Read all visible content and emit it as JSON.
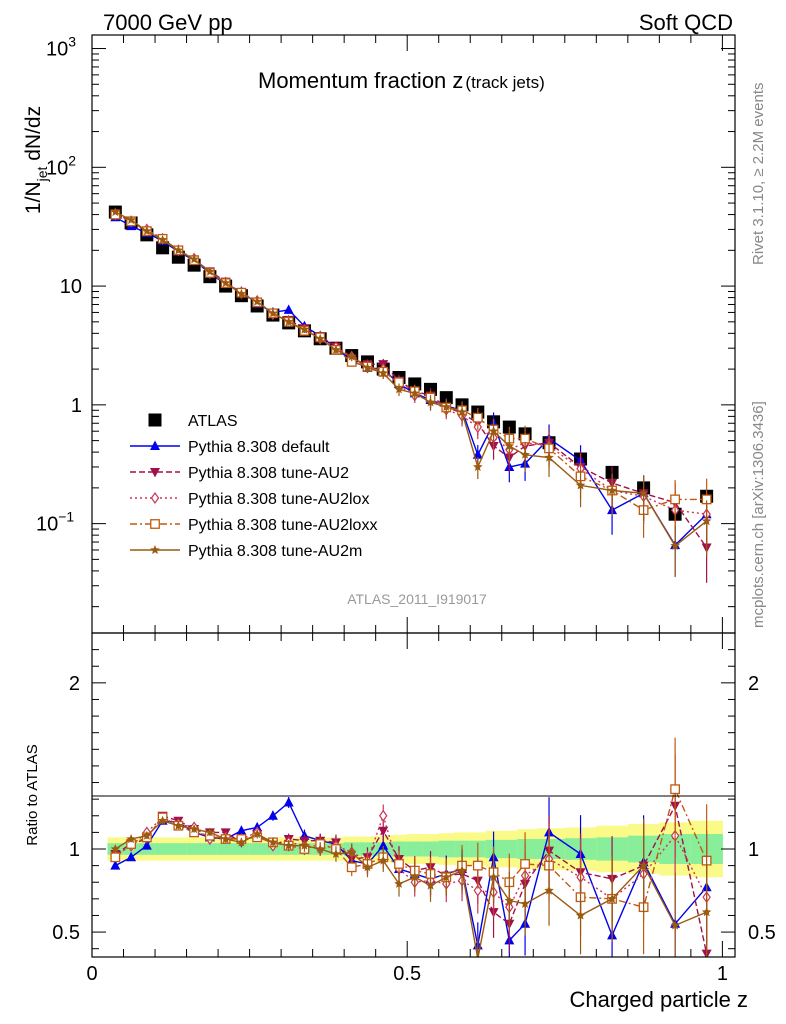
{
  "header": {
    "left": "7000 GeV pp",
    "right": "Soft QCD"
  },
  "side": {
    "rivet": "Rivet 3.1.10, ≥ 2.2M events",
    "mcplots": "mcplots.cern.ch [arXiv:1306.3436]"
  },
  "analysis_id": "ATLAS_2011_I919017",
  "chart_data": [
    {
      "type": "scatter",
      "panel": "main",
      "title": "Momentum fraction z",
      "title_subscript": "(track jets)",
      "ylabel": "1/N_jet dN/dz",
      "ylabel_parts": {
        "base": "1/N",
        "sub": "jet",
        "tail": " dN/dz"
      },
      "yscale": "log",
      "ylim": [
        0.012,
        1300
      ],
      "xlim": [
        0,
        1.02
      ],
      "y_ticks": [
        {
          "value": 1000,
          "base": "10",
          "exp": "3"
        },
        {
          "value": 100,
          "base": "10",
          "exp": "2"
        },
        {
          "value": 10,
          "base": "10",
          "exp": ""
        },
        {
          "value": 1,
          "base": "1",
          "exp": ""
        },
        {
          "value": 0.1,
          "base": "10",
          "exp": "−1"
        }
      ],
      "legend_position": "bottom-left",
      "x": [
        0.037,
        0.062,
        0.087,
        0.112,
        0.137,
        0.162,
        0.187,
        0.212,
        0.237,
        0.262,
        0.287,
        0.312,
        0.337,
        0.362,
        0.387,
        0.412,
        0.437,
        0.462,
        0.487,
        0.512,
        0.537,
        0.562,
        0.587,
        0.612,
        0.637,
        0.662,
        0.687,
        0.725,
        0.775,
        0.825,
        0.875,
        0.925,
        0.975
      ],
      "series": [
        {
          "name": "ATLAS",
          "color": "#000000",
          "marker": "square-filled",
          "line": "none",
          "values": [
            42,
            34,
            27,
            21,
            17.5,
            15,
            12,
            10,
            8.3,
            6.8,
            5.7,
            4.9,
            4.2,
            3.6,
            3.0,
            2.6,
            2.3,
            2.0,
            1.7,
            1.5,
            1.35,
            1.15,
            1.0,
            0.87,
            0.72,
            0.65,
            0.57,
            0.48,
            0.35,
            0.27,
            0.2,
            0.12,
            0.17
          ]
        },
        {
          "name": "Pythia 8.308 default",
          "color": "#0000ee",
          "marker": "triangle-up-filled",
          "line": "solid",
          "values": [
            38,
            32,
            28,
            24,
            19.5,
            16.5,
            12.8,
            10.4,
            9.0,
            7.1,
            6.0,
            6.3,
            4.6,
            3.8,
            3.0,
            2.35,
            2.05,
            2.0,
            1.5,
            1.25,
            1.1,
            0.98,
            0.9,
            0.38,
            0.7,
            0.3,
            0.32,
            0.52,
            0.34,
            0.13,
            0.18,
            0.066,
            0.12
          ]
        },
        {
          "name": "Pythia 8.308 tune-AU2",
          "color": "#a0104a",
          "marker": "triangle-down-filled",
          "line": "dashed",
          "values": [
            41,
            35,
            29,
            25,
            20,
            16.8,
            13.3,
            10.9,
            8.5,
            7.4,
            5.8,
            5.2,
            4.4,
            3.8,
            3.1,
            2.45,
            2.2,
            2.2,
            1.6,
            1.3,
            1.2,
            0.96,
            0.85,
            0.7,
            0.45,
            0.36,
            0.45,
            0.48,
            0.3,
            0.22,
            0.18,
            0.15,
            0.063
          ]
        },
        {
          "name": "Pythia 8.308 tune-AU2lox",
          "color": "#cc3355",
          "marker": "diamond-open",
          "line": "dotted",
          "values": [
            40,
            35,
            30,
            25,
            20,
            17,
            12.8,
            10.7,
            8.8,
            7.5,
            5.8,
            5.1,
            4.3,
            3.6,
            3.05,
            2.55,
            2.1,
            2.0,
            1.45,
            1.2,
            1.1,
            0.91,
            0.81,
            0.65,
            0.53,
            0.42,
            0.48,
            0.45,
            0.29,
            0.19,
            0.17,
            0.13,
            0.12
          ]
        },
        {
          "name": "Pythia 8.308 tune-AU2loxx",
          "color": "#c05a10",
          "marker": "square-open",
          "line": "dashdot",
          "values": [
            40,
            35,
            29,
            25,
            20,
            16.5,
            12.9,
            10.6,
            8.8,
            7.3,
            5.9,
            5.0,
            4.2,
            3.7,
            2.9,
            2.3,
            2.1,
            1.9,
            1.55,
            1.3,
            1.15,
            0.95,
            0.9,
            0.78,
            0.62,
            0.52,
            0.52,
            0.43,
            0.25,
            0.19,
            0.13,
            0.16,
            0.16
          ]
        },
        {
          "name": "Pythia 8.308 tune-AU2m",
          "color": "#9a5a10",
          "marker": "star-filled",
          "line": "solid",
          "values": [
            42,
            36,
            29,
            24.5,
            20,
            16.8,
            13.2,
            10.6,
            8.6,
            7.4,
            5.9,
            5.0,
            4.3,
            3.6,
            2.9,
            2.55,
            2.05,
            1.85,
            1.35,
            1.25,
            1.05,
            0.96,
            0.87,
            0.3,
            0.6,
            0.45,
            0.38,
            0.36,
            0.21,
            0.19,
            0.18,
            0.065,
            0.105
          ]
        }
      ]
    },
    {
      "type": "scatter",
      "panel": "ratio",
      "ylabel": "Ratio to ATLAS",
      "xlabel": "Charged particle z",
      "ylim": [
        0.35,
        2.3
      ],
      "xlim": [
        0,
        1.02
      ],
      "y_ticks": [
        {
          "value": 0.5,
          "label": "0.5"
        },
        {
          "value": 1,
          "label": "1"
        },
        {
          "value": 2,
          "label": "2"
        }
      ],
      "x_ticks": [
        {
          "value": 0,
          "label": "0"
        },
        {
          "value": 0.5,
          "label": "0.5"
        },
        {
          "value": 1,
          "label": "1"
        }
      ],
      "band_1sigma_color": "#88ee99",
      "band_2sigma_color": "#fafa88",
      "x": [
        0.037,
        0.062,
        0.087,
        0.112,
        0.137,
        0.162,
        0.187,
        0.212,
        0.237,
        0.262,
        0.287,
        0.312,
        0.337,
        0.362,
        0.387,
        0.412,
        0.437,
        0.462,
        0.487,
        0.512,
        0.537,
        0.562,
        0.587,
        0.612,
        0.637,
        0.662,
        0.687,
        0.725,
        0.775,
        0.825,
        0.875,
        0.925,
        0.975
      ],
      "band_1sigma": [
        0.035,
        0.035,
        0.035,
        0.035,
        0.035,
        0.035,
        0.035,
        0.035,
        0.035,
        0.035,
        0.035,
        0.035,
        0.035,
        0.035,
        0.035,
        0.04,
        0.04,
        0.04,
        0.045,
        0.045,
        0.045,
        0.05,
        0.05,
        0.05,
        0.055,
        0.055,
        0.06,
        0.06,
        0.065,
        0.07,
        0.08,
        0.09,
        0.09
      ],
      "band_2sigma": [
        0.07,
        0.07,
        0.07,
        0.07,
        0.07,
        0.07,
        0.07,
        0.07,
        0.07,
        0.07,
        0.07,
        0.07,
        0.07,
        0.07,
        0.07,
        0.075,
        0.075,
        0.08,
        0.085,
        0.09,
        0.09,
        0.095,
        0.1,
        0.1,
        0.11,
        0.11,
        0.12,
        0.125,
        0.13,
        0.14,
        0.15,
        0.16,
        0.17
      ],
      "series": [
        {
          "name": "Pythia 8.308 default",
          "color": "#0000ee",
          "marker": "triangle-up-filled",
          "line": "solid",
          "values": [
            0.9,
            0.95,
            1.02,
            1.17,
            1.16,
            1.1,
            1.07,
            1.06,
            1.11,
            1.13,
            1.2,
            1.28,
            1.08,
            1.05,
            1.03,
            0.93,
            0.91,
            1.02,
            0.88,
            0.85,
            0.82,
            0.85,
            0.88,
            0.42,
            0.95,
            0.45,
            0.55,
            1.1,
            0.97,
            0.48,
            0.92,
            0.55,
            0.77
          ]
        },
        {
          "name": "Pythia 8.308 tune-AU2",
          "color": "#a0104a",
          "marker": "triangle-down-filled",
          "line": "dashed",
          "values": [
            0.97,
            1.03,
            1.06,
            1.2,
            1.17,
            1.12,
            1.1,
            1.1,
            1.04,
            1.09,
            1.02,
            1.06,
            1.05,
            1.05,
            1.04,
            0.94,
            0.95,
            1.11,
            0.94,
            0.87,
            0.89,
            0.84,
            0.85,
            0.81,
            0.62,
            0.55,
            0.79,
            0.99,
            0.86,
            0.82,
            0.9,
            1.26,
            0.37
          ]
        },
        {
          "name": "Pythia 8.308 tune-AU2lox",
          "color": "#cc3355",
          "marker": "diamond-open",
          "line": "dotted",
          "values": [
            0.96,
            1.02,
            1.1,
            1.19,
            1.15,
            1.13,
            1.06,
            1.07,
            1.06,
            1.1,
            1.02,
            1.04,
            1.02,
            1.0,
            1.02,
            0.98,
            0.93,
            1.2,
            0.88,
            0.8,
            0.81,
            0.79,
            0.81,
            0.75,
            0.74,
            0.65,
            0.84,
            0.94,
            0.83,
            0.7,
            0.85,
            1.08,
            0.71
          ]
        },
        {
          "name": "Pythia 8.308 tune-AU2loxx",
          "color": "#c05a10",
          "marker": "square-open",
          "line": "dashdot",
          "values": [
            0.95,
            1.03,
            1.07,
            1.19,
            1.14,
            1.1,
            1.08,
            1.06,
            1.06,
            1.07,
            1.04,
            1.02,
            1.0,
            1.03,
            1.0,
            0.89,
            0.91,
            0.95,
            0.91,
            0.87,
            0.85,
            0.83,
            0.9,
            0.9,
            0.86,
            0.8,
            0.91,
            0.9,
            0.71,
            0.7,
            0.65,
            1.36,
            0.93
          ]
        },
        {
          "name": "Pythia 8.308 tune-AU2m",
          "color": "#9a5a10",
          "marker": "star-filled",
          "line": "solid",
          "values": [
            1.0,
            1.06,
            1.08,
            1.17,
            1.14,
            1.12,
            1.1,
            1.06,
            1.04,
            1.09,
            1.04,
            1.02,
            1.02,
            1.0,
            0.97,
            0.98,
            0.89,
            0.93,
            0.79,
            0.83,
            0.78,
            0.83,
            0.87,
            0.34,
            0.83,
            0.69,
            0.67,
            0.75,
            0.6,
            0.7,
            0.9,
            0.54,
            0.62
          ]
        }
      ]
    }
  ]
}
